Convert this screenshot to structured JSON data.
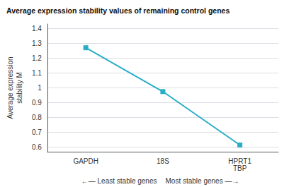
{
  "chart_data": {
    "type": "line",
    "title": "Average expression stability values of remaining control genes",
    "categories": [
      "GAPDH",
      "18S",
      "HPRT1\nTBP"
    ],
    "values": [
      1.27,
      0.975,
      0.615
    ],
    "color": "#29aec8",
    "marker": "square",
    "ylim": [
      0.57,
      1.43
    ],
    "yticks": [
      0.6,
      0.7,
      0.8,
      0.9,
      1,
      1.1,
      1.2,
      1.3,
      1.4
    ],
    "ylabel": "Average expression\nstability M",
    "annotations": [
      "←— Least stable genes",
      "Most stable genes —→"
    ],
    "grid": true
  }
}
